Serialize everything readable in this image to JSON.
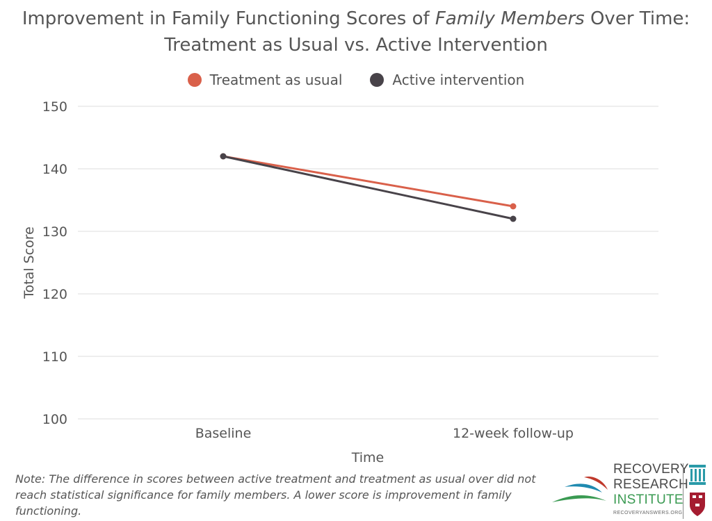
{
  "title": {
    "part1": "Improvement in Family Functioning Scores of ",
    "italic": "Family Members",
    "part2": " Over Time: Treatment as Usual vs. Active Intervention"
  },
  "note": "Note: The difference in scores between active treatment and treatment as usual over did not reach statistical significance for family members. A lower score is improvement in family functioning.",
  "logo": {
    "line1": "RECOVERY",
    "line2": "RESEARCH",
    "line3": "INSTITUTE",
    "url": "RECOVERYANSWERS.ORG"
  },
  "colors": {
    "treatment_as_usual": "#d9604a",
    "active_intervention": "#484349",
    "grid": "#dddddd",
    "text": "#555555"
  },
  "chart_data": {
    "type": "line",
    "categories": [
      "Baseline",
      "12-week follow-up"
    ],
    "series": [
      {
        "name": "Treatment as usual",
        "values": [
          142,
          134
        ],
        "color": "#d9604a"
      },
      {
        "name": "Active intervention",
        "values": [
          142,
          132
        ],
        "color": "#484349"
      }
    ],
    "xlabel": "Time",
    "ylabel": "Total Score",
    "ylim": [
      100,
      150
    ],
    "yticks": [
      100,
      110,
      120,
      130,
      140,
      150
    ],
    "grid": true,
    "legend_position": "top"
  }
}
